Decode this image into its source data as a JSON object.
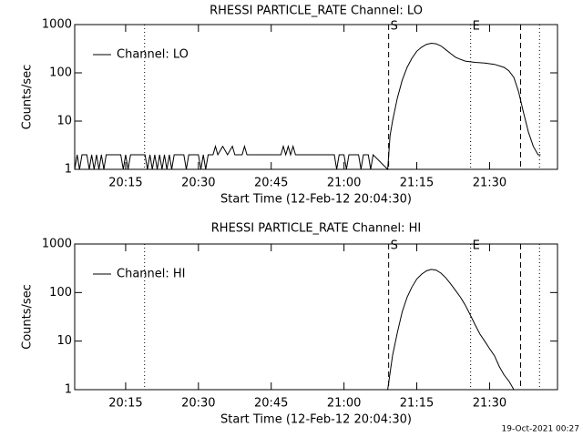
{
  "chart_data": [
    {
      "type": "line",
      "title": "RHESSI PARTICLE_RATE Channel: LO",
      "xlabel": "Start Time (12-Feb-12 20:04:30)",
      "ylabel": "Counts/sec",
      "log_y": true,
      "legend": "upper left",
      "xlim": [
        1204.5,
        1304
      ],
      "ylim": [
        1,
        1000
      ],
      "xticks": [
        {
          "value": 1215,
          "label": "20:15"
        },
        {
          "value": 1230,
          "label": "20:30"
        },
        {
          "value": 1245,
          "label": "20:45"
        },
        {
          "value": 1260,
          "label": "21:00"
        },
        {
          "value": 1275,
          "label": "21:15"
        },
        {
          "value": 1290,
          "label": "21:30"
        }
      ],
      "yticks": [
        1,
        10,
        100,
        1000
      ],
      "markers": [
        {
          "x": 1218.9,
          "style": "dotted"
        },
        {
          "x": 1269.2,
          "style": "dashed",
          "label": "S"
        },
        {
          "x": 1286.1,
          "style": "dotted",
          "label": "E"
        },
        {
          "x": 1296.4,
          "style": "dashed"
        },
        {
          "x": 1300.3,
          "style": "dotted"
        }
      ],
      "series": [
        {
          "name": "Channel: LO",
          "color": "#000000",
          "x": [
            1204.5,
            1205,
            1205.5,
            1206,
            1207,
            1207.5,
            1208,
            1208.5,
            1209,
            1209.5,
            1210,
            1210.5,
            1211,
            1212,
            1214,
            1214.5,
            1215,
            1215.5,
            1216,
            1219,
            1219.5,
            1220,
            1220.5,
            1221,
            1221.5,
            1222,
            1222.5,
            1223,
            1223.5,
            1224,
            1224.5,
            1225,
            1226,
            1227,
            1227.5,
            1228,
            1230,
            1230.5,
            1231,
            1231.5,
            1232,
            1233,
            1233.5,
            1234,
            1235,
            1236,
            1237,
            1237.5,
            1239,
            1239.5,
            1240,
            1247,
            1247.5,
            1248,
            1248.5,
            1249,
            1249.5,
            1250,
            1258,
            1258.5,
            1259,
            1260,
            1260.5,
            1261,
            1263,
            1263.5,
            1264,
            1265,
            1265.5,
            1266,
            1269,
            1269.5,
            1270,
            1271,
            1272,
            1273,
            1274,
            1275,
            1276,
            1277,
            1278,
            1279,
            1280,
            1281,
            1282,
            1283,
            1284,
            1285,
            1287,
            1289,
            1291,
            1293,
            1294,
            1295,
            1296,
            1297,
            1298,
            1299,
            1300,
            1300.5
          ],
          "values": [
            1,
            2,
            1,
            2,
            2,
            1,
            2,
            1,
            2,
            1,
            2,
            1,
            2,
            2,
            2,
            1,
            2,
            1,
            2,
            2,
            1,
            2,
            1,
            2,
            1,
            2,
            1,
            2,
            1,
            2,
            1,
            2,
            2,
            2,
            1,
            2,
            2,
            1,
            2,
            1,
            2,
            2,
            3,
            2,
            3,
            2,
            3,
            2,
            2,
            3,
            2,
            2,
            3,
            2,
            3,
            2,
            3,
            2,
            2,
            1,
            2,
            2,
            1,
            2,
            2,
            1,
            2,
            2,
            1,
            2,
            1,
            5,
            10,
            30,
            70,
            130,
            200,
            280,
            340,
            390,
            410,
            400,
            360,
            300,
            250,
            210,
            190,
            175,
            165,
            160,
            150,
            130,
            110,
            80,
            40,
            15,
            6,
            3,
            2,
            2
          ]
        }
      ]
    },
    {
      "type": "line",
      "title": "RHESSI PARTICLE_RATE Channel: HI",
      "xlabel": "Start Time (12-Feb-12 20:04:30)",
      "ylabel": "Counts/sec",
      "log_y": true,
      "legend": "upper left",
      "xlim": [
        1204.5,
        1304
      ],
      "ylim": [
        1,
        1000
      ],
      "xticks": [
        {
          "value": 1215,
          "label": "20:15"
        },
        {
          "value": 1230,
          "label": "20:30"
        },
        {
          "value": 1245,
          "label": "20:45"
        },
        {
          "value": 1260,
          "label": "21:00"
        },
        {
          "value": 1275,
          "label": "21:15"
        },
        {
          "value": 1290,
          "label": "21:30"
        }
      ],
      "yticks": [
        1,
        10,
        100,
        1000
      ],
      "markers": [
        {
          "x": 1218.9,
          "style": "dotted"
        },
        {
          "x": 1269.2,
          "style": "dashed",
          "label": "S"
        },
        {
          "x": 1286.1,
          "style": "dotted",
          "label": "E"
        },
        {
          "x": 1296.4,
          "style": "dashed"
        },
        {
          "x": 1300.3,
          "style": "dotted"
        }
      ],
      "series": [
        {
          "name": "Channel: HI",
          "color": "#000000",
          "x": [
            1269,
            1270,
            1271,
            1272,
            1273,
            1274,
            1275,
            1276,
            1277,
            1278,
            1279,
            1280,
            1281,
            1282,
            1283,
            1284,
            1285,
            1286,
            1287,
            1288,
            1289,
            1290,
            1291,
            1292,
            1293,
            1294,
            1295
          ],
          "values": [
            1,
            5,
            15,
            40,
            80,
            130,
            190,
            240,
            280,
            300,
            290,
            250,
            200,
            150,
            110,
            80,
            55,
            35,
            22,
            14,
            10,
            7,
            5,
            3,
            2,
            1.5,
            1
          ]
        }
      ]
    }
  ],
  "footer": "19-Oct-2021 00:27"
}
